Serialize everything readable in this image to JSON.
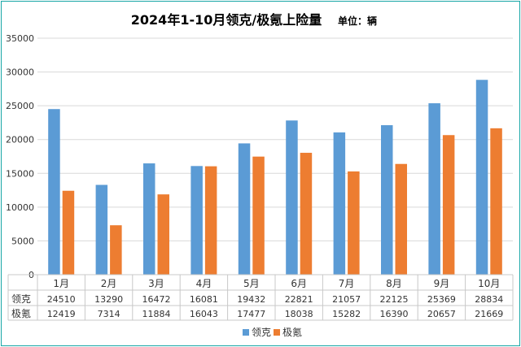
{
  "chart_data": {
    "type": "bar",
    "title": "2024年1-10月领克/极氪上险量",
    "unit_label": "单位：辆",
    "categories": [
      "1月",
      "2月",
      "3月",
      "4月",
      "5月",
      "6月",
      "7月",
      "8月",
      "9月",
      "10月"
    ],
    "series": [
      {
        "name": "领克",
        "values": [
          24510,
          13290,
          16472,
          16081,
          19432,
          22821,
          21057,
          22125,
          25369,
          28834
        ],
        "color": "#5b9bd5"
      },
      {
        "name": "极氪",
        "values": [
          12419,
          7314,
          11884,
          16043,
          17477,
          18038,
          15282,
          16390,
          20657,
          21669
        ],
        "color": "#ed7d31"
      }
    ],
    "ylim": [
      0,
      35000
    ],
    "yticks": [
      0,
      5000,
      10000,
      15000,
      20000,
      25000,
      30000,
      35000
    ],
    "grid": true,
    "legend_position": "bottom",
    "data_table": true
  }
}
